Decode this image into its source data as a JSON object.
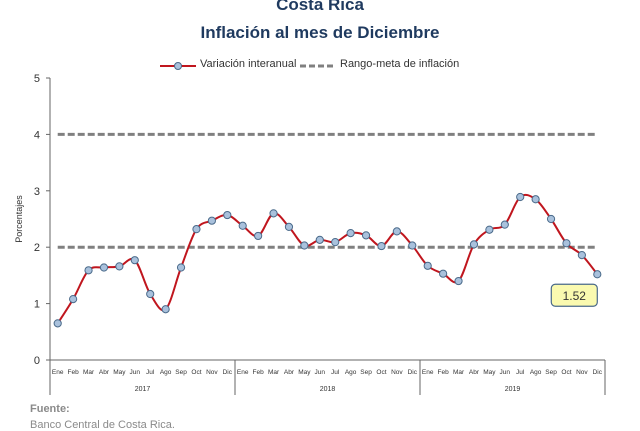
{
  "header": {
    "title": "Costa Rica",
    "subtitle": "Inflación al mes de Diciembre"
  },
  "legend": {
    "series_label": "Variación interanual",
    "target_label": "Rango-meta de inflación"
  },
  "footer": {
    "source_label": "Fuente:",
    "source_text": "Banco Central de Costa Rica."
  },
  "colors": {
    "series": "#c0161e",
    "marker_fill": "#a9c1dc",
    "marker_stroke": "#4a6a8a",
    "target": "#808080",
    "callout_fill": "#fafab0",
    "callout_stroke": "#4a6a8a",
    "axis": "#666666"
  },
  "chart_data": {
    "type": "line",
    "ylabel": "Porcentajes",
    "ylim": [
      0,
      5
    ],
    "yticks": [
      0,
      1,
      2,
      3,
      4,
      5
    ],
    "x": [
      "Ene",
      "Feb",
      "Mar",
      "Abr",
      "May",
      "Jun",
      "Jul",
      "Ago",
      "Sep",
      "Oct",
      "Nov",
      "Dic",
      "Ene",
      "Feb",
      "Mar",
      "Abr",
      "May",
      "Jun",
      "Jul",
      "Ago",
      "Sep",
      "Oct",
      "Nov",
      "Dic",
      "Ene",
      "Feb",
      "Mar",
      "Abr",
      "May",
      "Jun",
      "Jul",
      "Ago",
      "Sep",
      "Oct",
      "Nov",
      "Dic"
    ],
    "years": [
      {
        "label": "2017",
        "start": 0,
        "end": 11
      },
      {
        "label": "2018",
        "start": 12,
        "end": 23
      },
      {
        "label": "2019",
        "start": 24,
        "end": 35
      }
    ],
    "series": [
      {
        "name": "Variación interanual",
        "values": [
          0.65,
          1.08,
          1.59,
          1.64,
          1.66,
          1.77,
          1.17,
          0.9,
          1.64,
          2.32,
          2.47,
          2.57,
          2.38,
          2.2,
          2.6,
          2.36,
          2.03,
          2.13,
          2.09,
          2.25,
          2.21,
          2.02,
          2.28,
          2.03,
          1.67,
          1.53,
          1.4,
          2.05,
          2.31,
          2.4,
          2.89,
          2.85,
          2.5,
          2.07,
          1.86,
          1.52
        ]
      }
    ],
    "target_range": [
      2,
      4
    ],
    "callout": "1.52",
    "grid": false
  }
}
